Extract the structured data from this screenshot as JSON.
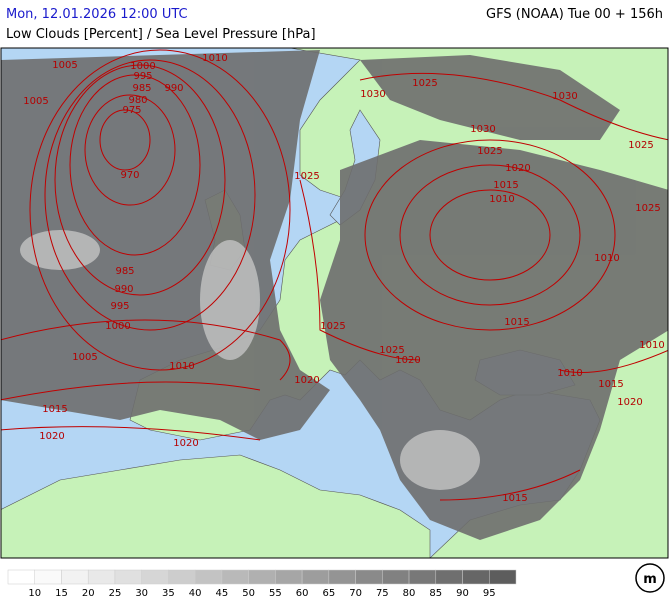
{
  "header": {
    "left": "Mon, 12.01.2026 12:00 UTC",
    "right": "GFS (NOAA) Tue 00 + 156h",
    "subtitle": "Low Clouds [Percent] / Sea Level Pressure [hPa]"
  },
  "isobar_labels": [
    1005,
    1000,
    995,
    1010,
    985,
    990,
    1005,
    980,
    975,
    970,
    985,
    990,
    995,
    1000,
    1005,
    1010,
    1015,
    1020,
    1020,
    1025,
    1025,
    1030,
    1030,
    1030,
    1025,
    1020,
    1015,
    1010,
    1025,
    1025,
    1010,
    1015,
    1025,
    1025,
    1020,
    1020,
    1010,
    1015,
    1020,
    1010,
    1015
  ],
  "legend": {
    "ticks": [
      10,
      15,
      20,
      25,
      30,
      35,
      40,
      45,
      50,
      55,
      60,
      65,
      70,
      75,
      80,
      85,
      90,
      95
    ],
    "colors": [
      "#ffffff",
      "#fafafa",
      "#f2f2f2",
      "#e9e9e9",
      "#e0e0e0",
      "#d6d6d6",
      "#cdcdcd",
      "#c3c3c3",
      "#b9b9b9",
      "#b0b0b0",
      "#a6a6a6",
      "#9d9d9d",
      "#949494",
      "#8a8a8a",
      "#818181",
      "#787878",
      "#6f6f6f",
      "#666666",
      "#5d5d5d"
    ]
  }
}
